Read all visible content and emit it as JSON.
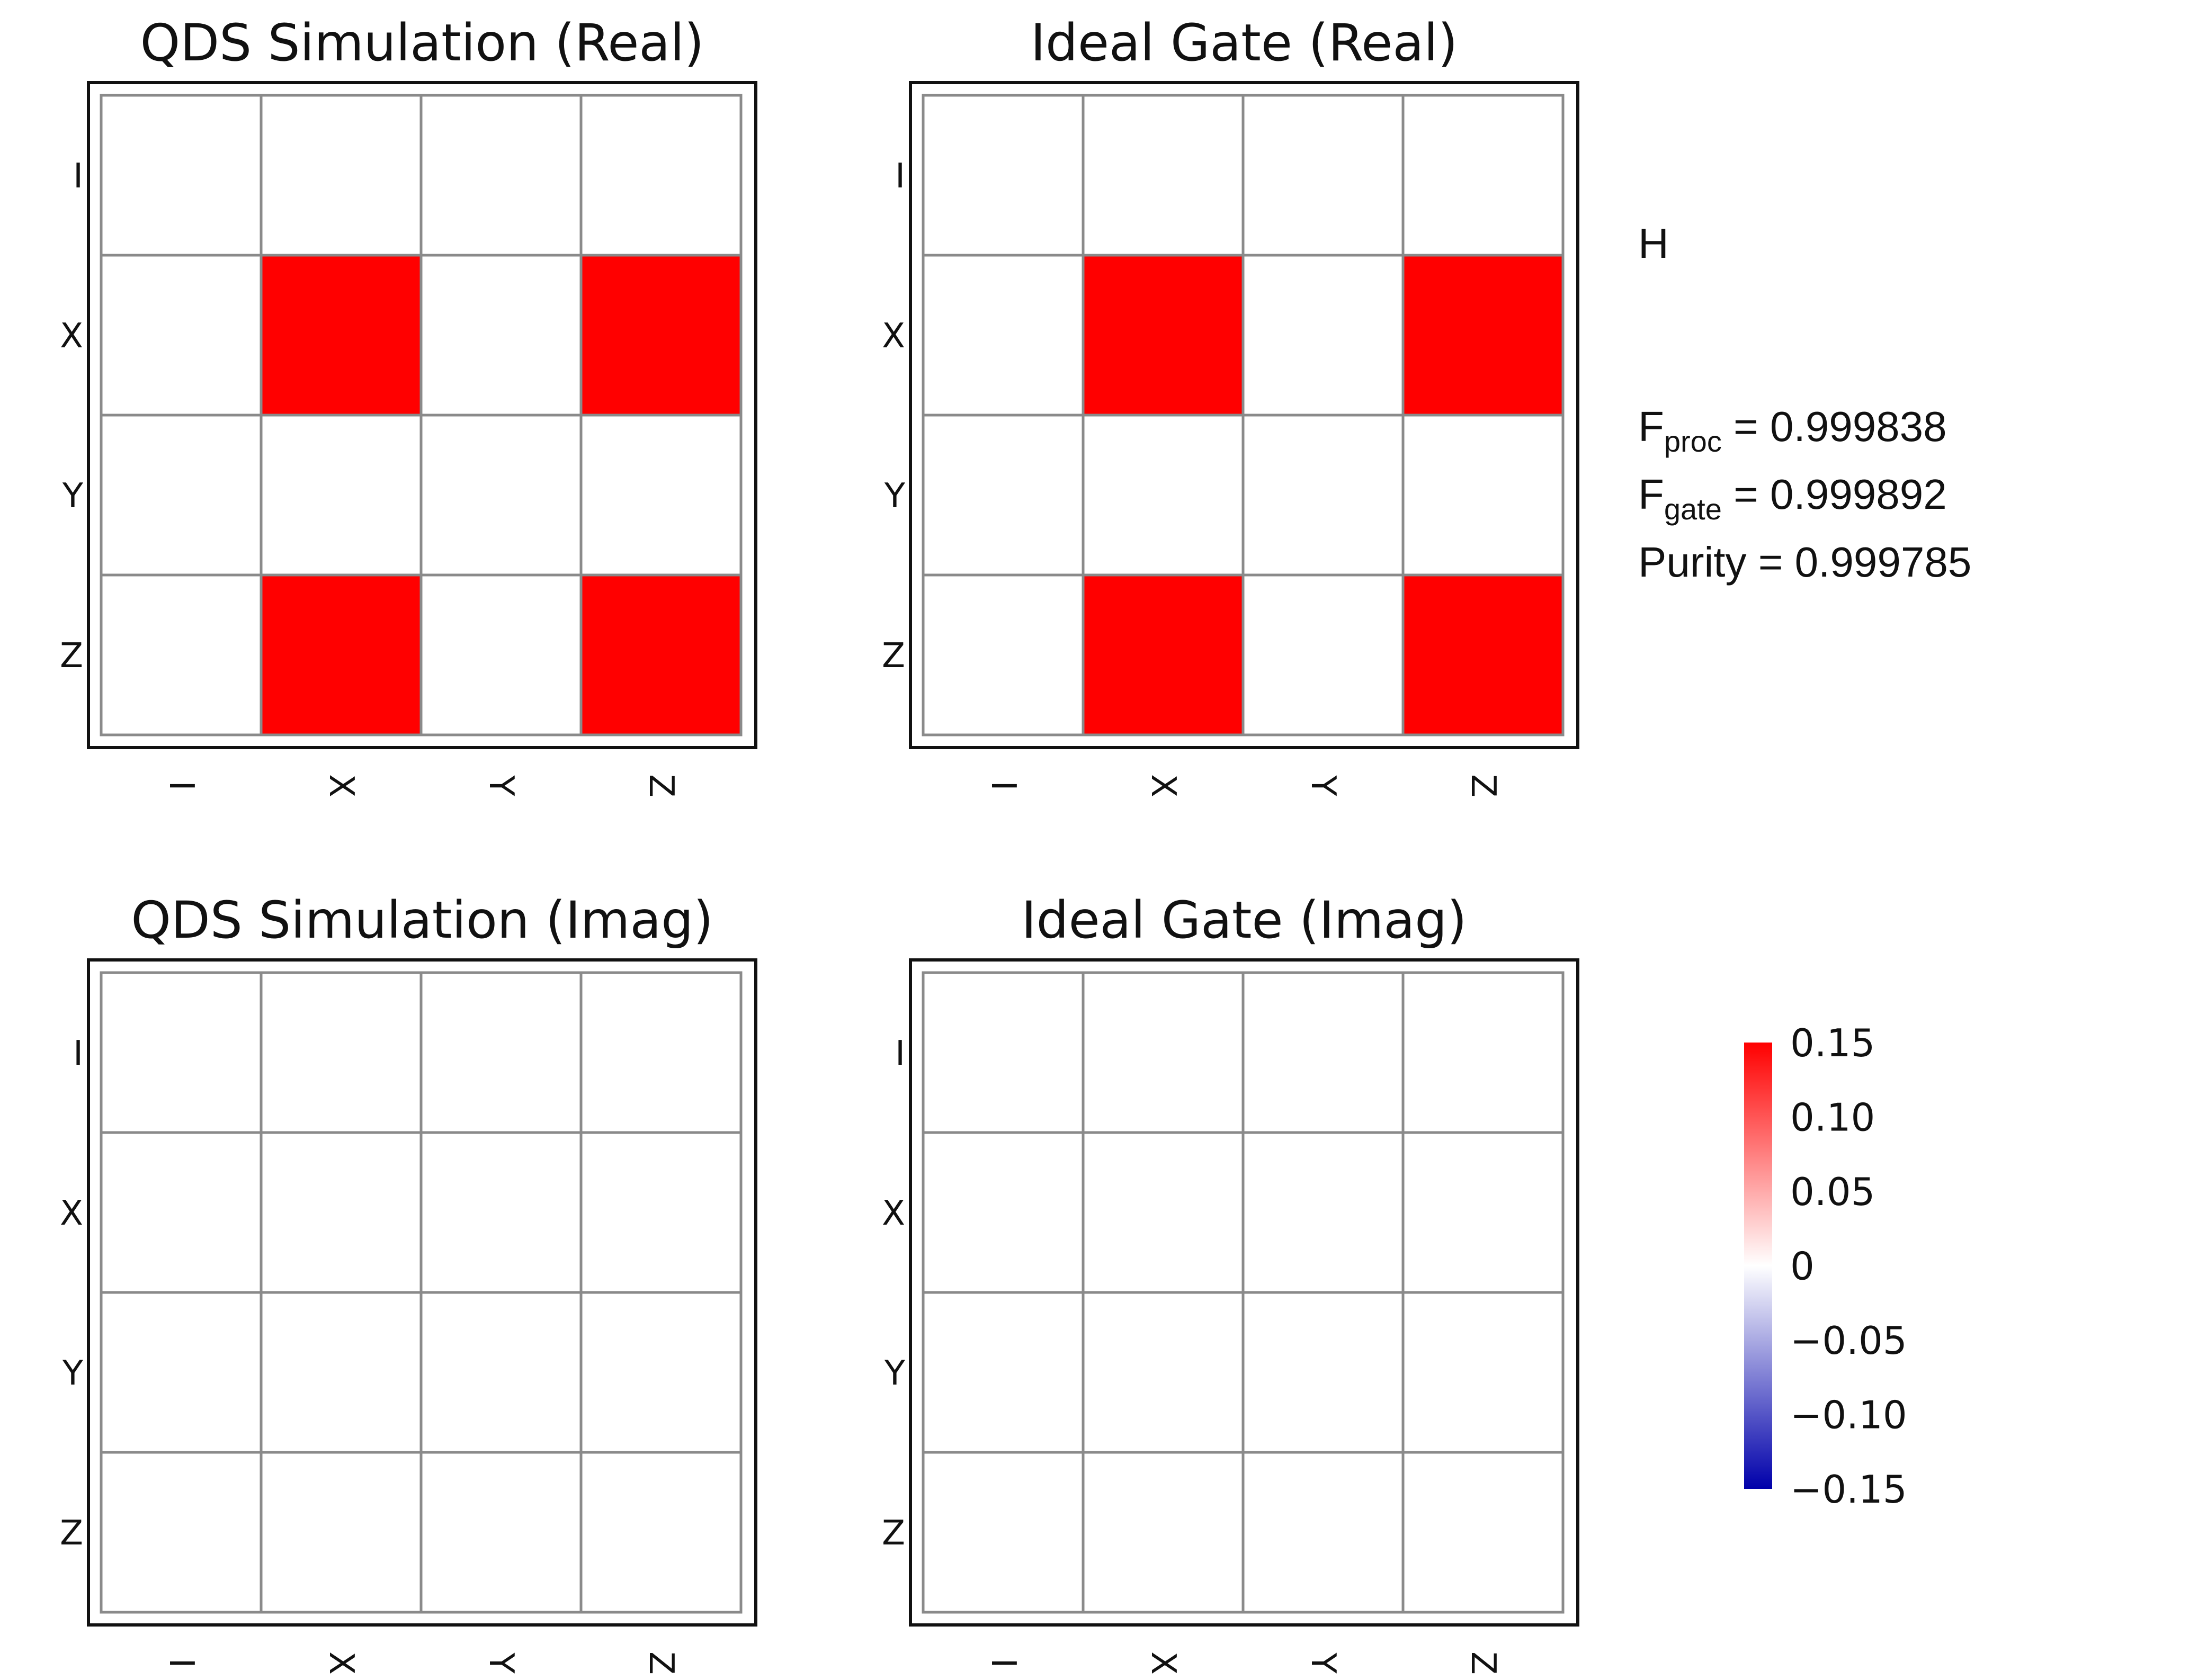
{
  "gate_label": "H",
  "metrics": [
    {
      "symbol": "F",
      "subscript": "proc",
      "value_text": " = 0.999838"
    },
    {
      "symbol": "F",
      "subscript": "gate",
      "value_text": " = 0.999892"
    },
    {
      "symbol": "Purity",
      "subscript": "",
      "value_text": " = 0.999785"
    }
  ],
  "colors": {
    "positive": "#ff0000",
    "zero": "#ffffff",
    "negative": "#0000aa"
  },
  "chart_data": [
    {
      "type": "heatmap",
      "title": "QDS Simulation (Real)",
      "x_labels": [
        "I",
        "X",
        "Y",
        "Z"
      ],
      "y_labels": [
        "I",
        "X",
        "Y",
        "Z"
      ],
      "values": [
        [
          0,
          0,
          0,
          0
        ],
        [
          0,
          0.25,
          0,
          0.25
        ],
        [
          0,
          0,
          0,
          0
        ],
        [
          0,
          0.25,
          0,
          0.25
        ]
      ],
      "vmin": -0.15,
      "vmax": 0.15
    },
    {
      "type": "heatmap",
      "title": "Ideal Gate (Real)",
      "x_labels": [
        "I",
        "X",
        "Y",
        "Z"
      ],
      "y_labels": [
        "I",
        "X",
        "Y",
        "Z"
      ],
      "values": [
        [
          0,
          0,
          0,
          0
        ],
        [
          0,
          0.25,
          0,
          0.25
        ],
        [
          0,
          0,
          0,
          0
        ],
        [
          0,
          0.25,
          0,
          0.25
        ]
      ],
      "vmin": -0.15,
      "vmax": 0.15
    },
    {
      "type": "heatmap",
      "title": "QDS Simulation (Imag)",
      "x_labels": [
        "I",
        "X",
        "Y",
        "Z"
      ],
      "y_labels": [
        "I",
        "X",
        "Y",
        "Z"
      ],
      "values": [
        [
          0,
          0,
          0,
          0
        ],
        [
          0,
          0,
          0,
          0
        ],
        [
          0,
          0,
          0,
          0
        ],
        [
          0,
          0,
          0,
          0
        ]
      ],
      "vmin": -0.15,
      "vmax": 0.15
    },
    {
      "type": "heatmap",
      "title": "Ideal Gate (Imag)",
      "x_labels": [
        "I",
        "X",
        "Y",
        "Z"
      ],
      "y_labels": [
        "I",
        "X",
        "Y",
        "Z"
      ],
      "values": [
        [
          0,
          0,
          0,
          0
        ],
        [
          0,
          0,
          0,
          0
        ],
        [
          0,
          0,
          0,
          0
        ],
        [
          0,
          0,
          0,
          0
        ]
      ],
      "vmin": -0.15,
      "vmax": 0.15
    }
  ],
  "colorbar": {
    "min": -0.15,
    "max": 0.15,
    "tick_labels": [
      "0.15",
      "0.10",
      "0.05",
      "0",
      "−0.05",
      "−0.10",
      "−0.15"
    ]
  }
}
